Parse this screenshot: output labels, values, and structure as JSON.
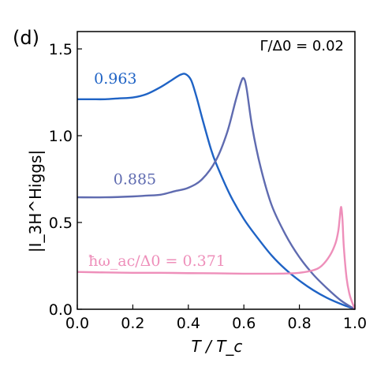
{
  "panel_label": "(d)",
  "chart_data": {
    "type": "line",
    "xlabel": "T / T_c",
    "ylabel": "|I_3H^Higgs|",
    "xlim": [
      0.0,
      1.0
    ],
    "ylim": [
      0.0,
      1.6
    ],
    "xticks": [
      "0.0",
      "0.2",
      "0.4",
      "0.6",
      "0.8",
      "1.0"
    ],
    "yticks": [
      "0.0",
      "0.5",
      "1.0",
      "1.5"
    ],
    "annotation": "Γ/Δ0 = 0.02",
    "series": [
      {
        "name": "0.963",
        "color": "#1f63c5",
        "x": [
          0.0,
          0.05,
          0.1,
          0.15,
          0.2,
          0.25,
          0.3,
          0.34,
          0.37,
          0.39,
          0.41,
          0.43,
          0.45,
          0.48,
          0.5,
          0.55,
          0.6,
          0.65,
          0.7,
          0.75,
          0.8,
          0.85,
          0.9,
          0.95,
          1.0
        ],
        "y": [
          1.21,
          1.21,
          1.21,
          1.215,
          1.22,
          1.24,
          1.28,
          1.32,
          1.35,
          1.355,
          1.32,
          1.22,
          1.1,
          0.93,
          0.84,
          0.66,
          0.52,
          0.41,
          0.31,
          0.23,
          0.165,
          0.11,
          0.065,
          0.03,
          0.0
        ]
      },
      {
        "name": "0.885",
        "color": "#5f6bb0",
        "x": [
          0.0,
          0.1,
          0.2,
          0.25,
          0.3,
          0.35,
          0.4,
          0.45,
          0.5,
          0.54,
          0.57,
          0.59,
          0.6,
          0.61,
          0.63,
          0.66,
          0.7,
          0.75,
          0.8,
          0.85,
          0.9,
          0.95,
          1.0
        ],
        "y": [
          0.645,
          0.645,
          0.65,
          0.655,
          0.66,
          0.68,
          0.7,
          0.75,
          0.86,
          1.02,
          1.2,
          1.31,
          1.33,
          1.27,
          1.05,
          0.82,
          0.6,
          0.43,
          0.3,
          0.2,
          0.12,
          0.05,
          0.0
        ]
      },
      {
        "name": "ħω_ac/Δ0 = 0.371",
        "color": "#ee8fba",
        "x": [
          0.0,
          0.1,
          0.2,
          0.3,
          0.4,
          0.5,
          0.6,
          0.7,
          0.75,
          0.8,
          0.85,
          0.88,
          0.91,
          0.93,
          0.94,
          0.945,
          0.95,
          0.955,
          0.96,
          0.97,
          0.98,
          0.99,
          1.0
        ],
        "y": [
          0.215,
          0.212,
          0.21,
          0.21,
          0.208,
          0.207,
          0.205,
          0.205,
          0.206,
          0.21,
          0.225,
          0.25,
          0.31,
          0.38,
          0.45,
          0.52,
          0.59,
          0.52,
          0.36,
          0.18,
          0.09,
          0.04,
          0.0
        ]
      }
    ],
    "curve_labels": [
      {
        "text": "0.963",
        "x": 0.06,
        "y": 1.3,
        "color": "#1f63c5"
      },
      {
        "text": "0.885",
        "x": 0.13,
        "y": 0.72,
        "color": "#5f6bb0"
      },
      {
        "text": "ħω_ac/Δ0 = 0.371",
        "x": 0.04,
        "y": 0.25,
        "color": "#ee8fba"
      }
    ]
  }
}
